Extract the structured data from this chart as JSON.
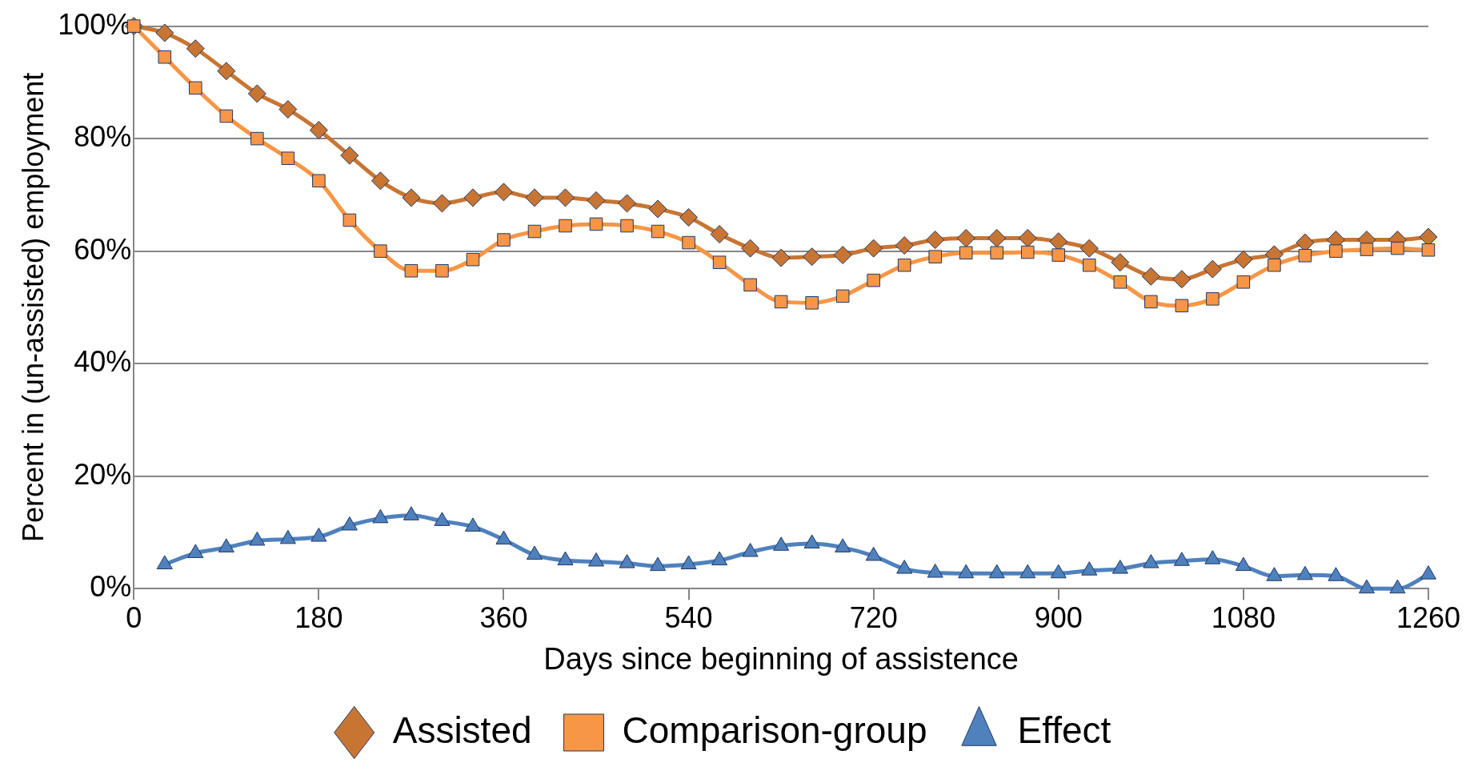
{
  "chart_data": {
    "type": "line",
    "xlabel": "Days since beginning of assistence",
    "ylabel": "Percent in (un-assisted) employment",
    "xlim": [
      0,
      1260
    ],
    "xticks": [
      0,
      180,
      360,
      540,
      720,
      900,
      1080,
      1260
    ],
    "ylim": [
      0,
      100
    ],
    "yticks": [
      {
        "value": 0,
        "label": "0%"
      },
      {
        "value": 20,
        "label": "20%"
      },
      {
        "value": 40,
        "label": "40%"
      },
      {
        "value": 60,
        "label": "60%"
      },
      {
        "value": 80,
        "label": "80%"
      },
      {
        "value": 100,
        "label": "100%"
      }
    ],
    "grid": "y",
    "legend": "bottom",
    "line_style": "solid",
    "x": [
      0,
      30,
      60,
      90,
      120,
      150,
      180,
      210,
      240,
      270,
      300,
      330,
      360,
      390,
      420,
      450,
      480,
      510,
      540,
      570,
      600,
      630,
      660,
      690,
      720,
      750,
      780,
      810,
      840,
      870,
      900,
      930,
      960,
      990,
      1020,
      1050,
      1080,
      1110,
      1140,
      1170,
      1200,
      1230,
      1260
    ],
    "series": [
      {
        "name": "Assisted",
        "color": "#c87533",
        "marker": "diamond",
        "values": [
          100,
          98.8,
          96,
          92,
          88,
          85.2,
          81.5,
          77,
          72.5,
          69.5,
          68.5,
          69.5,
          70.5,
          69.5,
          69.5,
          69,
          68.5,
          67.5,
          66,
          63,
          60.5,
          58.8,
          59,
          59.3,
          60.5,
          61,
          62,
          62.3,
          62.3,
          62.3,
          61.7,
          60.5,
          58,
          55.5,
          55,
          56.8,
          58.5,
          59.4,
          61.5,
          62,
          62,
          62,
          62.5
        ]
      },
      {
        "name": "Comparison-group",
        "color": "#f79646",
        "marker": "square",
        "values": [
          100,
          94.5,
          89,
          84,
          80,
          76.5,
          72.5,
          65.5,
          60,
          56.5,
          56.5,
          58.5,
          62,
          63.5,
          64.5,
          64.8,
          64.5,
          63.5,
          61.5,
          58,
          54,
          51,
          50.8,
          52,
          54.8,
          57.5,
          59,
          59.7,
          59.7,
          59.8,
          59.3,
          57.5,
          54.5,
          51,
          50.3,
          51.5,
          54.5,
          57.5,
          59.2,
          60,
          60.3,
          60.5,
          60.2
        ]
      },
      {
        "name": "Effect",
        "color": "#4f81bd",
        "marker": "triangle",
        "values": [
          null,
          4.3,
          6.3,
          7.3,
          8.5,
          8.8,
          9.2,
          11.2,
          12.5,
          13,
          12,
          11,
          8.7,
          6,
          5,
          4.8,
          4.5,
          4,
          4.3,
          5,
          6.5,
          7.6,
          8,
          7.3,
          5.8,
          3.5,
          2.8,
          2.7,
          2.7,
          2.7,
          2.7,
          3.2,
          3.5,
          4.5,
          4.9,
          5.2,
          4,
          2.2,
          2.4,
          2.2,
          0,
          0,
          2.5
        ]
      }
    ]
  }
}
